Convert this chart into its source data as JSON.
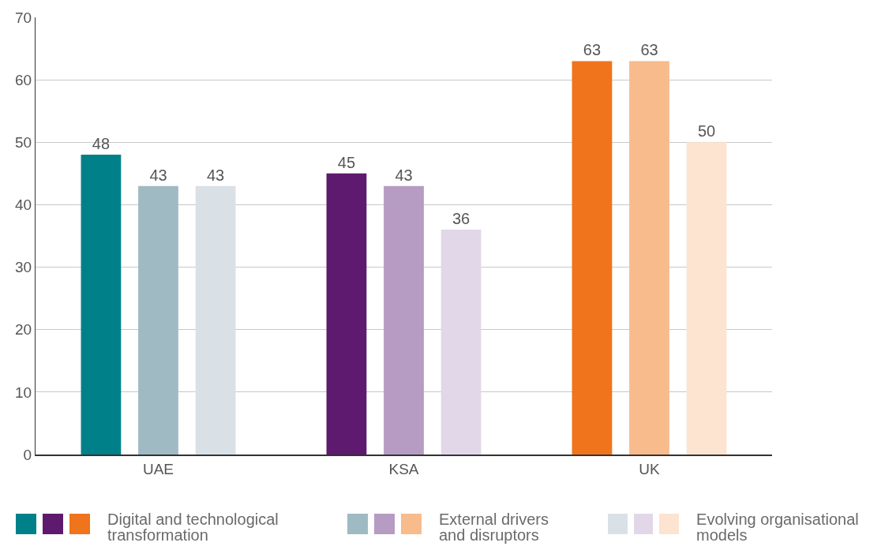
{
  "chart_data": {
    "type": "bar",
    "categories": [
      "UAE",
      "KSA",
      "UK"
    ],
    "series": [
      {
        "name": "Digital and technological transformation",
        "colors": [
          "#00818a",
          "#5e1a6e",
          "#ef741c"
        ],
        "values": [
          48,
          45,
          63
        ]
      },
      {
        "name": "External drivers and disruptors",
        "colors": [
          "#9fbac2",
          "#b69bc3",
          "#f8bb8c"
        ],
        "values": [
          43,
          43,
          63
        ]
      },
      {
        "name": "Evolving organisational models",
        "colors": [
          "#d9e1e7",
          "#e2d7e9",
          "#fde4d0"
        ],
        "values": [
          43,
          36,
          50
        ]
      }
    ],
    "ylim": [
      0,
      70
    ],
    "yticks": [
      0,
      10,
      20,
      30,
      40,
      50,
      60,
      70
    ],
    "grid": "y",
    "data_labels": true,
    "legend": "bottom"
  }
}
